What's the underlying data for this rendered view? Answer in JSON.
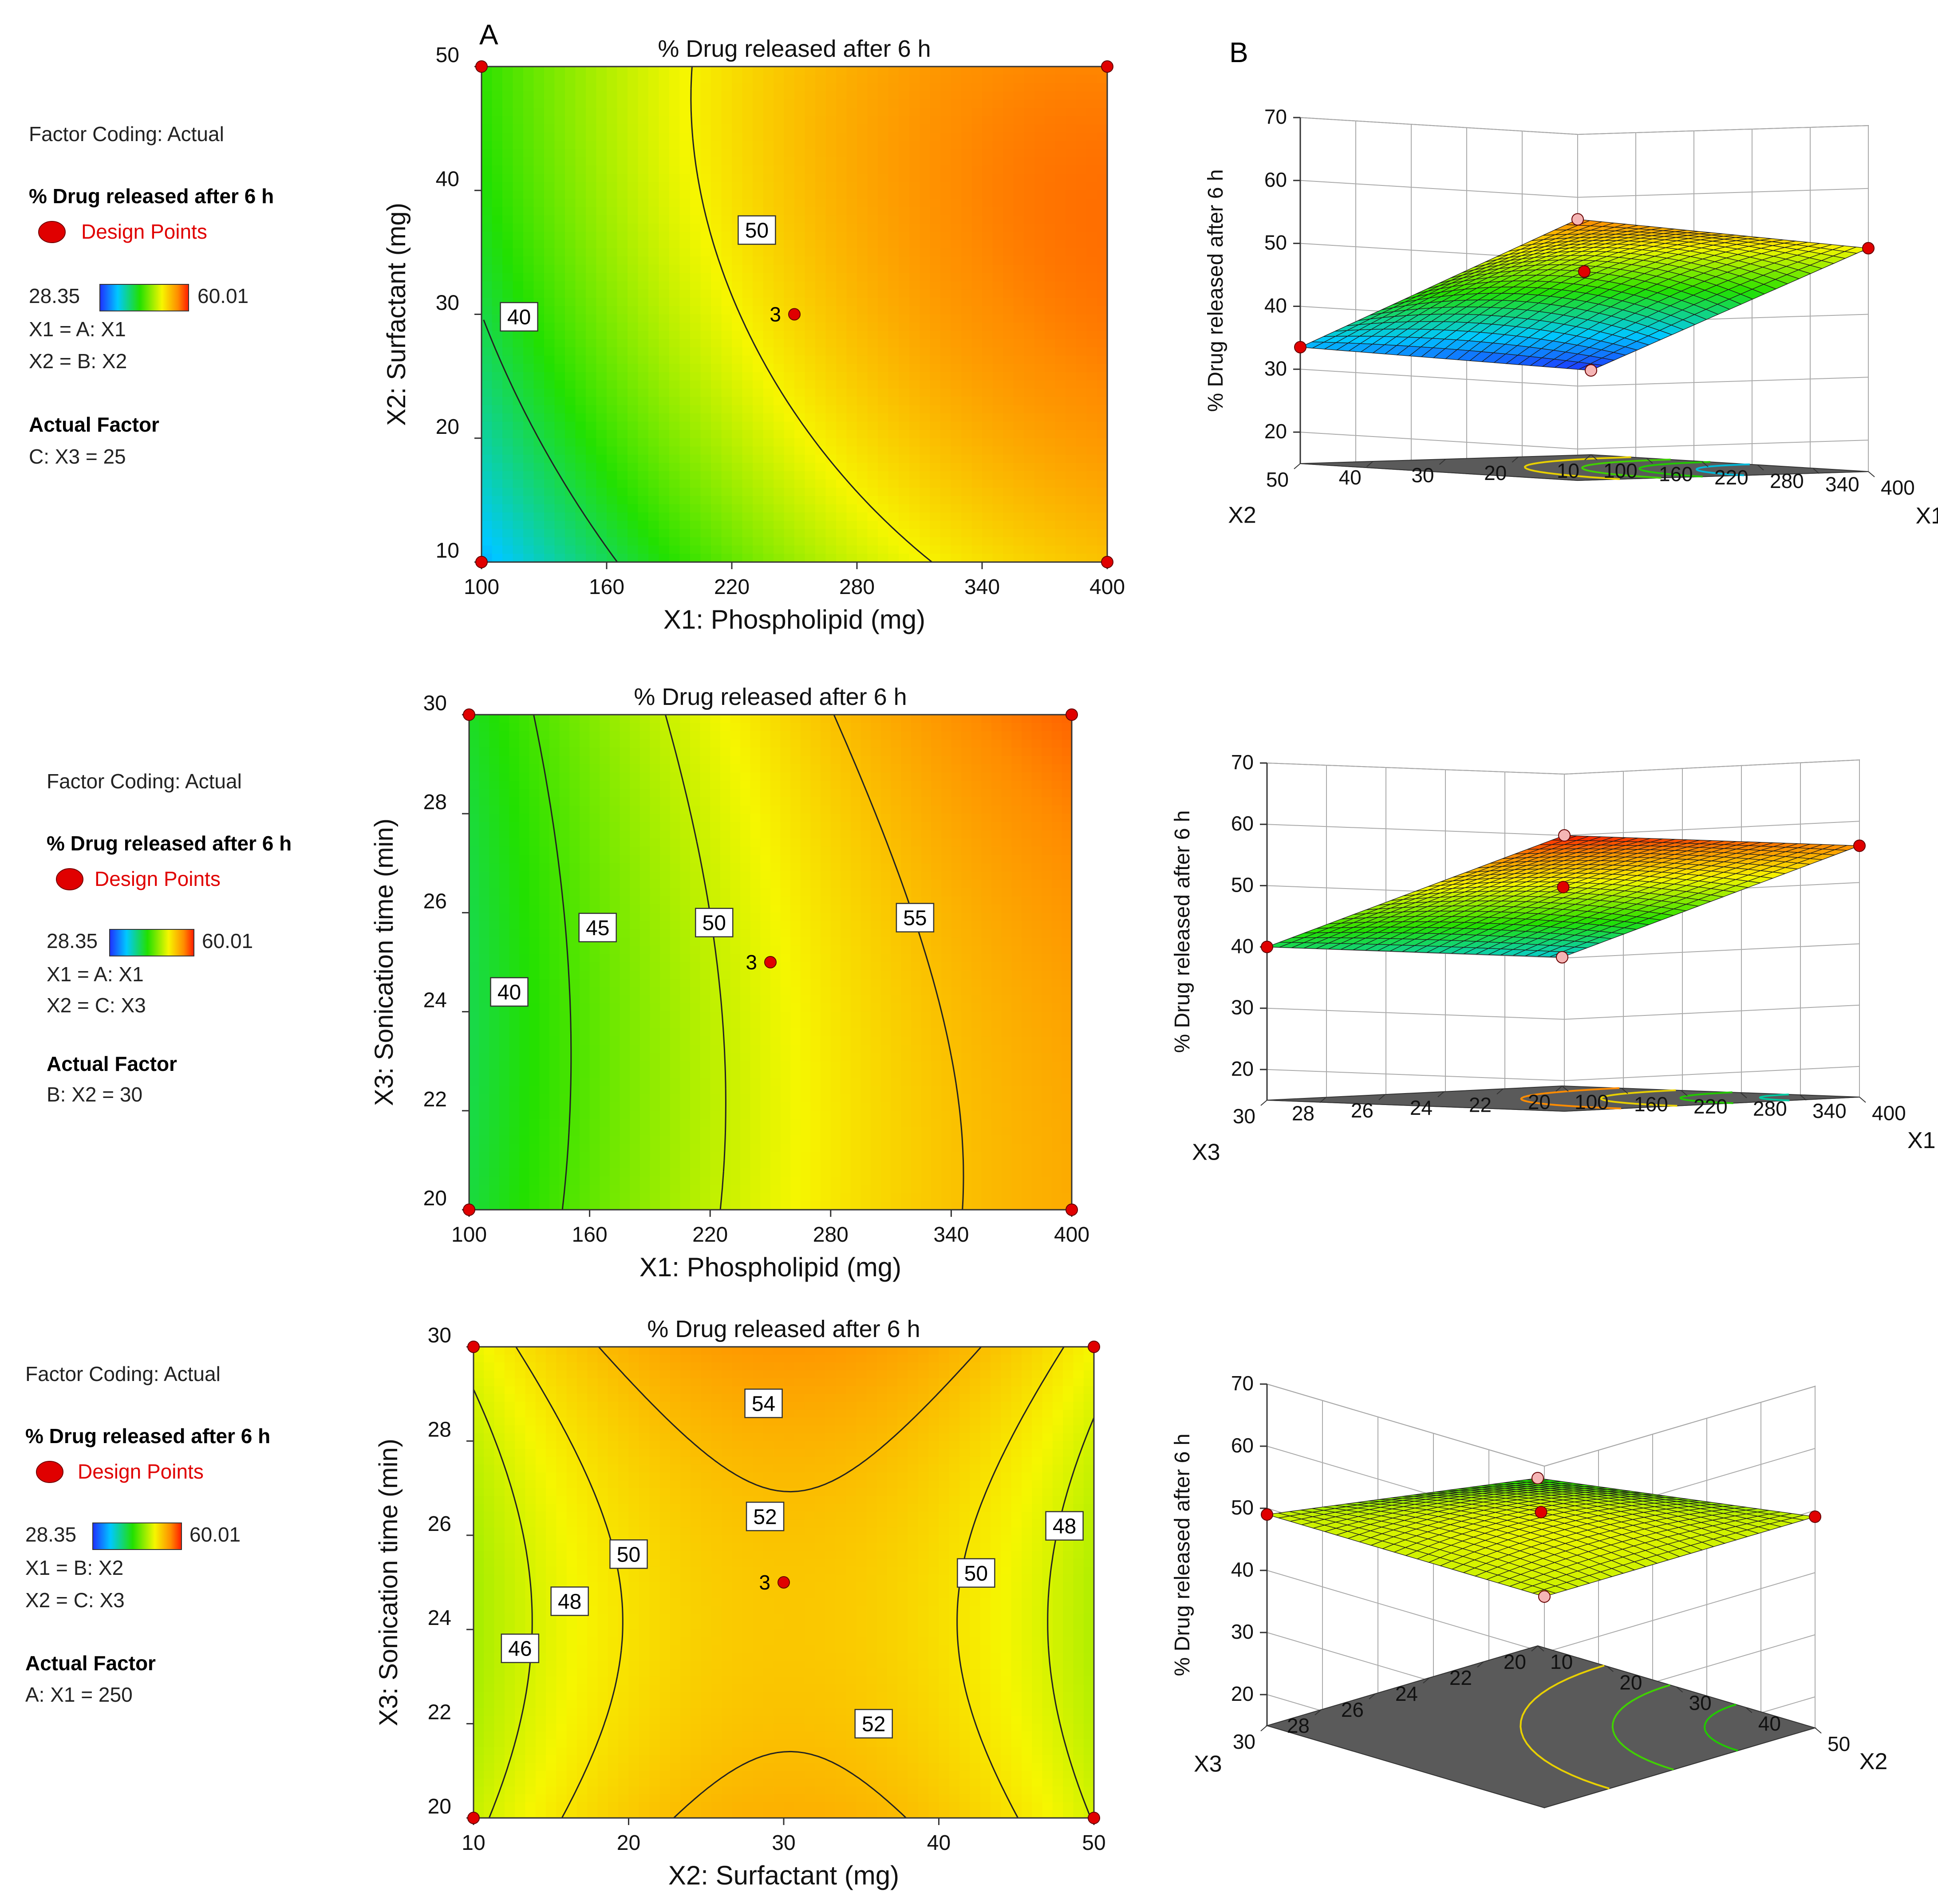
{
  "colors": {
    "ramp": [
      "#1f2fff",
      "#00c8ff",
      "#00e060",
      "#22e000",
      "#f6f600",
      "#ff8c00",
      "#ff1a00"
    ],
    "design_point": "#e00000",
    "floor": "#5a5a5a",
    "contour_line": "#222222"
  },
  "panel_labels": {
    "a": "A",
    "b": "B"
  },
  "legends": [
    {
      "coding": "Factor Coding: Actual",
      "response": "% Drug released after 6 h",
      "design_points": "Design Points",
      "min": "28.35",
      "max": "60.01",
      "x1_map": "X1 = A: X1",
      "x2_map": "X2 = B: X2",
      "actual_title": "Actual Factor",
      "actual_value": "C: X3 = 25"
    },
    {
      "coding": "Factor Coding: Actual",
      "response": "% Drug released after 6 h",
      "design_points": "Design Points",
      "min": "28.35",
      "max": "60.01",
      "x1_map": "X1 = A: X1",
      "x2_map": "X2 = C: X3",
      "actual_title": "Actual Factor",
      "actual_value": "B: X2 = 30"
    },
    {
      "coding": "Factor Coding: Actual",
      "response": "% Drug released after 6 h",
      "design_points": "Design Points",
      "min": "28.35",
      "max": "60.01",
      "x1_map": "X1 = B: X2",
      "x2_map": "X2 = C: X3",
      "actual_title": "Actual Factor",
      "actual_value": "A: X1 = 250"
    }
  ],
  "chart_data": [
    {
      "type": "contour",
      "title": "% Drug released after 6 h",
      "xlabel": "X1: Phospholipid (mg)",
      "ylabel": "X2: Surfactant (mg)",
      "xlim": [
        100,
        400
      ],
      "ylim": [
        10,
        50
      ],
      "x_ticks": [
        "100",
        "160",
        "220",
        "280",
        "340",
        "400"
      ],
      "y_ticks": [
        "10",
        "20",
        "30",
        "40",
        "50"
      ],
      "model": {
        "a": 51.5,
        "b1": 8.0,
        "b2": 3.0,
        "b11": -3.5,
        "b22": -2.0,
        "b12": -1.5,
        "cmin": 28.35,
        "cmax": 60.01,
        "saturation": 59.0
      },
      "contour_levels": [
        40,
        50
      ],
      "contour_labels": [
        {
          "text": "40",
          "x": 118,
          "y": 29.8
        },
        {
          "text": "50",
          "x": 232,
          "y": 36.8
        }
      ],
      "design_points": [
        {
          "x": 100,
          "y": 10
        },
        {
          "x": 100,
          "y": 50
        },
        {
          "x": 400,
          "y": 10
        },
        {
          "x": 400,
          "y": 50
        },
        {
          "x": 250,
          "y": 30
        }
      ],
      "center_point_label": "3"
    },
    {
      "type": "contour",
      "title": "% Drug released after 6 h",
      "xlabel": "X1: Phospholipid (mg)",
      "ylabel": "X3: Sonication time (min)",
      "xlim": [
        100,
        400
      ],
      "ylim": [
        20,
        30
      ],
      "x_ticks": [
        "100",
        "160",
        "220",
        "280",
        "340",
        "400"
      ],
      "y_ticks": [
        "20",
        "22",
        "24",
        "26",
        "28",
        "30"
      ],
      "model": {
        "a": 51.5,
        "b1": 8.0,
        "b2": 1.0,
        "b11": -2.5,
        "b22": 0.8,
        "b12": 0.6,
        "cmin": 28.35,
        "cmax": 60.01,
        "saturation": 62.0
      },
      "contour_levels": [
        40,
        45,
        50,
        55
      ],
      "contour_labels": [
        {
          "text": "40",
          "x": 120,
          "y": 24.4
        },
        {
          "text": "45",
          "x": 164,
          "y": 25.7
        },
        {
          "text": "50",
          "x": 222,
          "y": 25.8
        },
        {
          "text": "55",
          "x": 322,
          "y": 25.9
        }
      ],
      "design_points": [
        {
          "x": 100,
          "y": 20
        },
        {
          "x": 100,
          "y": 30
        },
        {
          "x": 400,
          "y": 20
        },
        {
          "x": 400,
          "y": 30
        },
        {
          "x": 250,
          "y": 25
        }
      ],
      "center_point_label": "3"
    },
    {
      "type": "contour",
      "title": "% Drug released after 6 h",
      "xlabel": "X2: Surfactant (mg)",
      "ylabel": "X3: Sonication time (min)",
      "xlim": [
        10,
        50
      ],
      "ylim": [
        20,
        30
      ],
      "x_ticks": [
        "10",
        "20",
        "30",
        "40",
        "50"
      ],
      "y_ticks": [
        "20",
        "22",
        "24",
        "26",
        "28",
        "30"
      ],
      "model": {
        "a": 51.5,
        "b1": 0.2,
        "b2": 0.6,
        "b11": -5.0,
        "b22": 1.8,
        "b12": 0.0,
        "cmin": 28.35,
        "cmax": 60.01,
        "saturation": 58.0
      },
      "contour_levels": [
        46,
        48,
        50,
        52,
        54
      ],
      "contour_labels": [
        {
          "text": "46",
          "x": 13.0,
          "y": 23.6
        },
        {
          "text": "48",
          "x": 16.2,
          "y": 24.6
        },
        {
          "text": "50",
          "x": 20.0,
          "y": 25.6
        },
        {
          "text": "52",
          "x": 28.8,
          "y": 26.4
        },
        {
          "text": "54",
          "x": 28.7,
          "y": 28.8
        },
        {
          "text": "50",
          "x": 42.4,
          "y": 25.2
        },
        {
          "text": "48",
          "x": 48.1,
          "y": 26.2
        },
        {
          "text": "52",
          "x": 35.8,
          "y": 22.0
        }
      ],
      "design_points": [
        {
          "x": 10,
          "y": 20
        },
        {
          "x": 10,
          "y": 30
        },
        {
          "x": 50,
          "y": 20
        },
        {
          "x": 50,
          "y": 30
        },
        {
          "x": 30,
          "y": 25
        }
      ],
      "center_point_label": "3"
    },
    {
      "type": "surface3d",
      "zlabel": "% Drug released after 6 h",
      "xlabel": "X1",
      "ylabel": "X2",
      "z_ticks": [
        "20",
        "30",
        "40",
        "50",
        "60",
        "70"
      ],
      "x_ticks": [
        "100",
        "160",
        "220",
        "280",
        "340",
        "400"
      ],
      "y_ticks": [
        "10",
        "20",
        "30",
        "40",
        "50"
      ],
      "zlim": [
        15,
        70
      ],
      "surface": {
        "z00": 28.4,
        "z10": 50.5,
        "z01": 33.5,
        "z11": 56.5,
        "zc": 51.5,
        "bump": 6.5
      },
      "floor_contours": [
        {
          "level": 0.45,
          "color": "#00b8d8"
        },
        {
          "level": 0.6,
          "color": "#22c800"
        },
        {
          "level": 0.75,
          "color": "#40d000"
        },
        {
          "level": 0.9,
          "color": "#e8d000"
        }
      ]
    },
    {
      "type": "surface3d",
      "zlabel": "% Drug released after 6 h",
      "xlabel": "X1",
      "ylabel": "X3",
      "z_ticks": [
        "20",
        "30",
        "40",
        "50",
        "60",
        "70"
      ],
      "x_ticks": [
        "100",
        "160",
        "220",
        "280",
        "340",
        "400"
      ],
      "y_ticks": [
        "20",
        "22",
        "24",
        "26",
        "28",
        "30"
      ],
      "zlim": [
        15,
        70
      ],
      "surface": {
        "z00": 36.0,
        "z10": 56.0,
        "z01": 40.0,
        "z11": 60.0,
        "zc": 51.5,
        "bump": 2.5
      },
      "floor_contours": [
        {
          "level": 0.25,
          "color": "#00c8a0"
        },
        {
          "level": 0.45,
          "color": "#22c800"
        },
        {
          "level": 0.65,
          "color": "#e8d000"
        },
        {
          "level": 0.85,
          "color": "#ff8c00"
        }
      ]
    },
    {
      "type": "surface3d",
      "zlabel": "% Drug released after 6 h",
      "xlabel": "X2",
      "ylabel": "X3",
      "z_ticks": [
        "20",
        "30",
        "40",
        "50",
        "60",
        "70"
      ],
      "x_ticks": [
        "10",
        "20",
        "30",
        "40",
        "50"
      ],
      "y_ticks": [
        "20",
        "22",
        "24",
        "26",
        "28",
        "30"
      ],
      "zlim": [
        15,
        70
      ],
      "surface": {
        "z00": 42.0,
        "z10": 49.0,
        "z01": 49.0,
        "z11": 49.0,
        "zc": 51.5,
        "bump": 5.0
      },
      "floor_contours": [
        {
          "level": 0.3,
          "color": "#22c800"
        },
        {
          "level": 0.55,
          "color": "#40d000"
        },
        {
          "level": 0.8,
          "color": "#e8d000"
        }
      ]
    }
  ]
}
